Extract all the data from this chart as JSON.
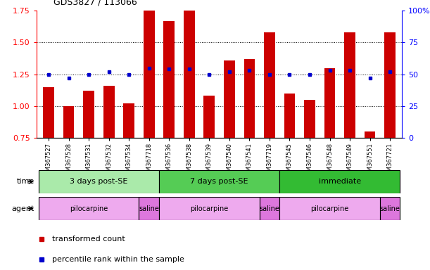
{
  "title": "GDS3827 / 113066",
  "samples": [
    "GSM367527",
    "GSM367528",
    "GSM367531",
    "GSM367532",
    "GSM367534",
    "GSM367718",
    "GSM367536",
    "GSM367538",
    "GSM367539",
    "GSM367540",
    "GSM367541",
    "GSM367719",
    "GSM367545",
    "GSM367546",
    "GSM367548",
    "GSM367549",
    "GSM367551",
    "GSM367721"
  ],
  "bar_values": [
    1.15,
    1.0,
    1.12,
    1.16,
    1.02,
    1.88,
    1.67,
    1.84,
    1.08,
    1.36,
    1.37,
    1.58,
    1.1,
    1.05,
    1.3,
    1.58,
    0.8,
    1.58
  ],
  "dot_values": [
    1.25,
    1.22,
    1.25,
    1.27,
    1.25,
    1.3,
    1.29,
    1.29,
    1.25,
    1.27,
    1.28,
    1.25,
    1.25,
    1.25,
    1.28,
    1.28,
    1.22,
    1.27
  ],
  "bar_color": "#cc0000",
  "dot_color": "#0000cc",
  "ylim": [
    0.75,
    1.75
  ],
  "y2lim": [
    0,
    100
  ],
  "yticks": [
    0.75,
    1.0,
    1.25,
    1.5,
    1.75
  ],
  "y2ticks": [
    0,
    25,
    50,
    75,
    100
  ],
  "hgrid_vals": [
    1.0,
    1.25,
    1.5
  ],
  "time_groups": [
    {
      "label": "3 days post-SE",
      "start": 0,
      "end": 5,
      "color": "#aaeaaa"
    },
    {
      "label": "7 days post-SE",
      "start": 6,
      "end": 11,
      "color": "#55cc55"
    },
    {
      "label": "immediate",
      "start": 12,
      "end": 17,
      "color": "#33bb33"
    }
  ],
  "agent_groups": [
    {
      "label": "pilocarpine",
      "start": 0,
      "end": 4,
      "color": "#eeaaee"
    },
    {
      "label": "saline",
      "start": 5,
      "end": 5,
      "color": "#dd77dd"
    },
    {
      "label": "pilocarpine",
      "start": 6,
      "end": 10,
      "color": "#eeaaee"
    },
    {
      "label": "saline",
      "start": 11,
      "end": 11,
      "color": "#dd77dd"
    },
    {
      "label": "pilocarpine",
      "start": 12,
      "end": 16,
      "color": "#eeaaee"
    },
    {
      "label": "saline",
      "start": 17,
      "end": 17,
      "color": "#dd77dd"
    }
  ],
  "legend_items": [
    {
      "label": "transformed count",
      "color": "#cc0000"
    },
    {
      "label": "percentile rank within the sample",
      "color": "#0000cc"
    }
  ],
  "bar_width": 0.55,
  "background_color": "#ffffff",
  "time_label": "time",
  "agent_label": "agent"
}
